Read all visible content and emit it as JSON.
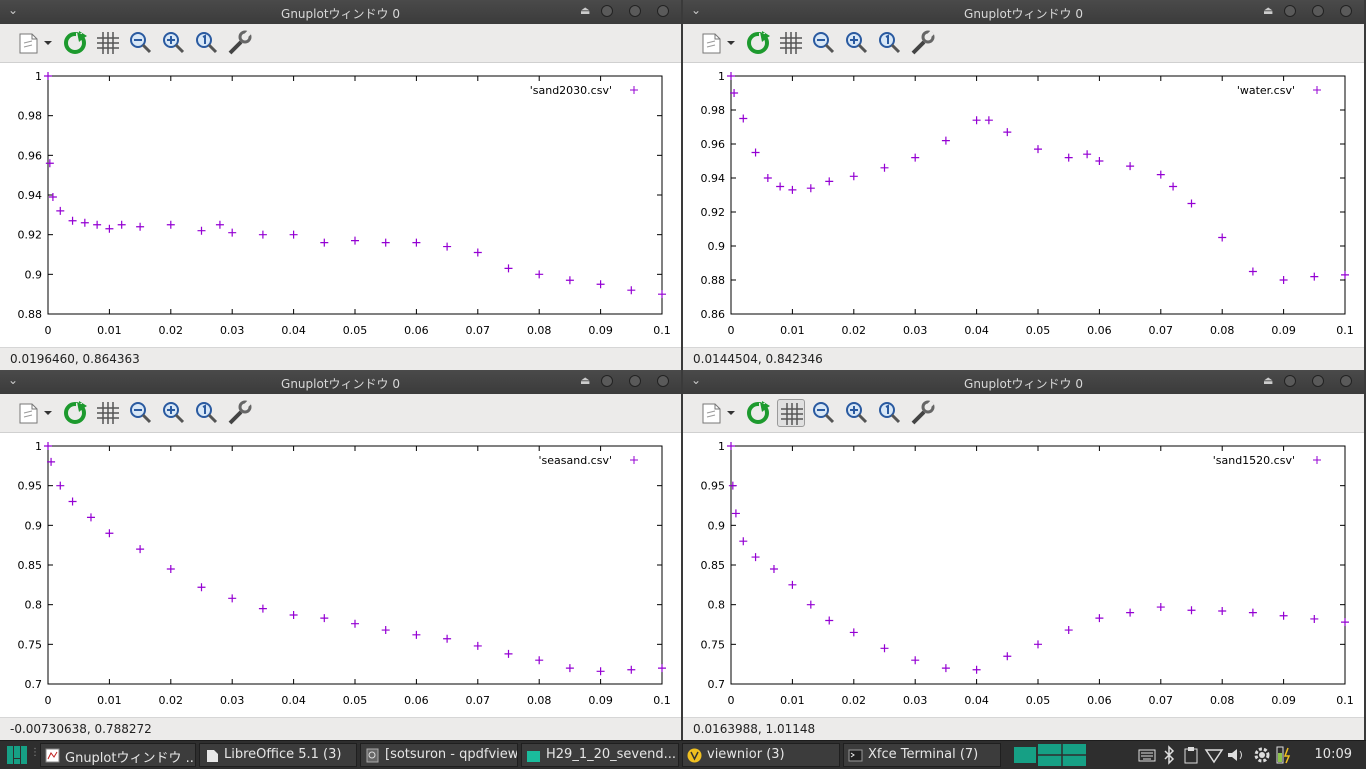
{
  "windows": [
    {
      "title": "Gnuplotウィンドウ 0",
      "status": "0.0196460,  0.864363",
      "grid_active": false,
      "chart_data": {
        "type": "scatter",
        "legend": "'sand2030.csv'",
        "legend_position": "top-right",
        "xlim": [
          0,
          0.1
        ],
        "ylim": [
          0.88,
          1.0
        ],
        "xticks": [
          "0",
          "0.01",
          "0.02",
          "0.03",
          "0.04",
          "0.05",
          "0.06",
          "0.07",
          "0.08",
          "0.09",
          "0.1"
        ],
        "yticks": [
          "0.88",
          "0.9",
          "0.92",
          "0.94",
          "0.96",
          "0.98",
          "1"
        ],
        "x": [
          0,
          0.0003,
          0.0008,
          0.002,
          0.004,
          0.006,
          0.008,
          0.01,
          0.012,
          0.015,
          0.02,
          0.025,
          0.028,
          0.03,
          0.035,
          0.04,
          0.045,
          0.05,
          0.055,
          0.06,
          0.065,
          0.07,
          0.075,
          0.08,
          0.085,
          0.09,
          0.095,
          0.1
        ],
        "y": [
          1.0,
          0.956,
          0.939,
          0.932,
          0.927,
          0.926,
          0.925,
          0.923,
          0.925,
          0.924,
          0.925,
          0.922,
          0.925,
          0.921,
          0.92,
          0.92,
          0.916,
          0.917,
          0.916,
          0.916,
          0.914,
          0.911,
          0.903,
          0.9,
          0.897,
          0.895,
          0.892,
          0.89
        ]
      }
    },
    {
      "title": "Gnuplotウィンドウ 0",
      "status": "0.0144504,  0.842346",
      "grid_active": false,
      "chart_data": {
        "type": "scatter",
        "legend": "'water.csv'",
        "legend_position": "top-right",
        "xlim": [
          0,
          0.1
        ],
        "ylim": [
          0.86,
          1.0
        ],
        "xticks": [
          "0",
          "0.01",
          "0.02",
          "0.03",
          "0.04",
          "0.05",
          "0.06",
          "0.07",
          "0.08",
          "0.09",
          "0.1"
        ],
        "yticks": [
          "0.86",
          "0.88",
          "0.9",
          "0.92",
          "0.94",
          "0.96",
          "0.98",
          "1"
        ],
        "x": [
          0,
          0.0005,
          0.002,
          0.004,
          0.006,
          0.008,
          0.01,
          0.013,
          0.016,
          0.02,
          0.025,
          0.03,
          0.035,
          0.04,
          0.042,
          0.045,
          0.05,
          0.055,
          0.058,
          0.06,
          0.065,
          0.07,
          0.072,
          0.075,
          0.08,
          0.085,
          0.09,
          0.095,
          0.1
        ],
        "y": [
          1.0,
          0.99,
          0.975,
          0.955,
          0.94,
          0.935,
          0.933,
          0.934,
          0.938,
          0.941,
          0.946,
          0.952,
          0.962,
          0.974,
          0.974,
          0.967,
          0.957,
          0.952,
          0.954,
          0.95,
          0.947,
          0.942,
          0.935,
          0.925,
          0.905,
          0.885,
          0.88,
          0.882,
          0.883
        ]
      }
    },
    {
      "title": "Gnuplotウィンドウ 0",
      "status": "-0.00730638,  0.788272",
      "grid_active": false,
      "chart_data": {
        "type": "scatter",
        "legend": "'seasand.csv'",
        "legend_position": "top-right",
        "xlim": [
          0,
          0.1
        ],
        "ylim": [
          0.7,
          1.0
        ],
        "xticks": [
          "0",
          "0.01",
          "0.02",
          "0.03",
          "0.04",
          "0.05",
          "0.06",
          "0.07",
          "0.08",
          "0.09",
          "0.1"
        ],
        "yticks": [
          "0.7",
          "0.75",
          "0.8",
          "0.85",
          "0.9",
          "0.95",
          "1"
        ],
        "x": [
          0,
          0.0005,
          0.002,
          0.004,
          0.007,
          0.01,
          0.015,
          0.02,
          0.025,
          0.03,
          0.035,
          0.04,
          0.045,
          0.05,
          0.055,
          0.06,
          0.065,
          0.07,
          0.075,
          0.08,
          0.085,
          0.09,
          0.095,
          0.1
        ],
        "y": [
          1.0,
          0.98,
          0.95,
          0.93,
          0.91,
          0.89,
          0.87,
          0.845,
          0.822,
          0.808,
          0.795,
          0.787,
          0.783,
          0.776,
          0.768,
          0.762,
          0.757,
          0.748,
          0.738,
          0.73,
          0.72,
          0.716,
          0.718,
          0.72
        ]
      }
    },
    {
      "title": "Gnuplotウィンドウ 0",
      "status": "0.0163988,  1.01148",
      "grid_active": true,
      "chart_data": {
        "type": "scatter",
        "legend": "'sand1520.csv'",
        "legend_position": "top-right",
        "xlim": [
          0,
          0.1
        ],
        "ylim": [
          0.7,
          1.0
        ],
        "xticks": [
          "0",
          "0.01",
          "0.02",
          "0.03",
          "0.04",
          "0.05",
          "0.06",
          "0.07",
          "0.08",
          "0.09",
          "0.1"
        ],
        "yticks": [
          "0.7",
          "0.75",
          "0.8",
          "0.85",
          "0.9",
          "0.95",
          "1"
        ],
        "x": [
          0,
          0.0003,
          0.0008,
          0.002,
          0.004,
          0.007,
          0.01,
          0.013,
          0.016,
          0.02,
          0.025,
          0.03,
          0.035,
          0.04,
          0.045,
          0.05,
          0.055,
          0.06,
          0.065,
          0.07,
          0.075,
          0.08,
          0.085,
          0.09,
          0.095,
          0.1
        ],
        "y": [
          1.0,
          0.95,
          0.915,
          0.88,
          0.86,
          0.845,
          0.825,
          0.8,
          0.78,
          0.765,
          0.745,
          0.73,
          0.72,
          0.718,
          0.735,
          0.75,
          0.768,
          0.783,
          0.79,
          0.797,
          0.793,
          0.792,
          0.79,
          0.786,
          0.782,
          0.778
        ]
      }
    }
  ],
  "taskbar": {
    "items": [
      {
        "label": "Gnuplotウィンドウ ..."
      },
      {
        "label": "LibreOffice 5.1 (3)"
      },
      {
        "label": "[sotsuron - qpdfview]"
      },
      {
        "label": "H29_1_20_sevend..."
      },
      {
        "label": "viewnior (3)"
      },
      {
        "label": "Xfce Terminal (7)"
      }
    ],
    "clock": "10:09",
    "colors": {
      "accent": "#16a085",
      "series": "#9400d3"
    }
  }
}
